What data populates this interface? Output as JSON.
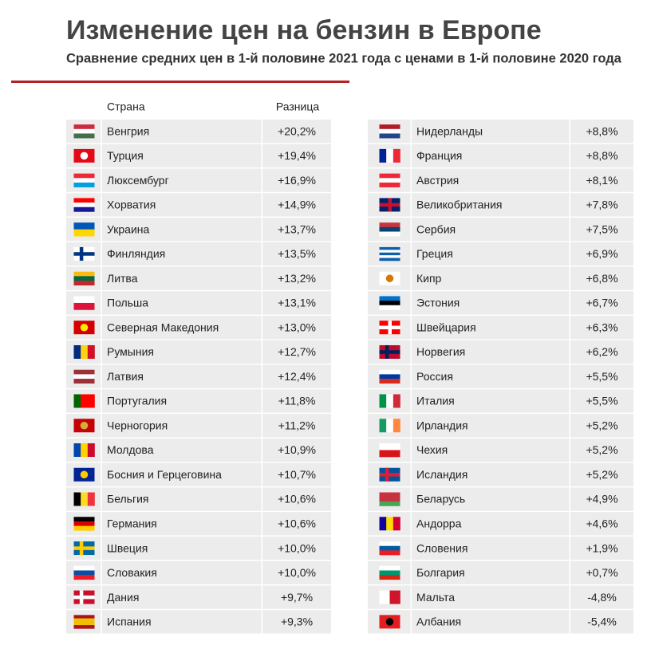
{
  "header": {
    "title": "Изменение цен на бензин в Европе",
    "subtitle": "Сравнение средних цен в 1-й половине 2021 года с ценами в 1-й половине 2020 года"
  },
  "table": {
    "columns": [
      "Страна",
      "Разница"
    ],
    "rows": [
      [
        "Венгрия",
        "+20,2%"
      ],
      [
        "Турция",
        "+19,4%"
      ],
      [
        "Люксембург",
        "+16,9%"
      ],
      [
        "Хорватия",
        "+14,9%"
      ],
      [
        "Украина",
        "+13,7%"
      ],
      [
        "Финляндия",
        "+13,5%"
      ],
      [
        "Литва",
        "+13,2%"
      ],
      [
        "Польша",
        "+13,1%"
      ],
      [
        "Северная Македония",
        "+13,0%"
      ],
      [
        "Румыния",
        "+12,7%"
      ],
      [
        "Латвия",
        "+12,4%"
      ],
      [
        "Португалия",
        "+11,8%"
      ],
      [
        "Черногория",
        "+11,2%"
      ],
      [
        "Молдова",
        "+10,9%"
      ],
      [
        "Босния и Герцеговина",
        "+10,7%"
      ],
      [
        "Бельгия",
        "+10,6%"
      ],
      [
        "Германия",
        "+10,6%"
      ],
      [
        "Швеция",
        "+10,0%"
      ],
      [
        "Словакия",
        "+10,0%"
      ],
      [
        "Дания",
        "+9,7%"
      ],
      [
        "Испания",
        "+9,3%"
      ],
      [
        "Нидерланды",
        "+8,8%"
      ],
      [
        "Франция",
        "+8,8%"
      ],
      [
        "Австрия",
        "+8,1%"
      ],
      [
        "Великобритания",
        "+7,8%"
      ],
      [
        "Сербия",
        "+7,5%"
      ],
      [
        "Греция",
        "+6,9%"
      ],
      [
        "Кипр",
        "+6,8%"
      ],
      [
        "Эстония",
        "+6,7%"
      ],
      [
        "Швейцария",
        "+6,3%"
      ],
      [
        "Норвегия",
        "+6,2%"
      ],
      [
        "Россия",
        "+5,5%"
      ],
      [
        "Италия",
        "+5,5%"
      ],
      [
        "Ирландия",
        "+5,2%"
      ],
      [
        "Чехия",
        "+5,2%"
      ],
      [
        "Исландия",
        "+5,2%"
      ],
      [
        "Беларусь",
        "+4,9%"
      ],
      [
        "Андорра",
        "+4,6%"
      ],
      [
        "Словения",
        "+1,9%"
      ],
      [
        "Болгария",
        "+0,7%"
      ],
      [
        "Мальта",
        "-4,8%"
      ],
      [
        "Албания",
        "-5,4%"
      ]
    ]
  }
}
